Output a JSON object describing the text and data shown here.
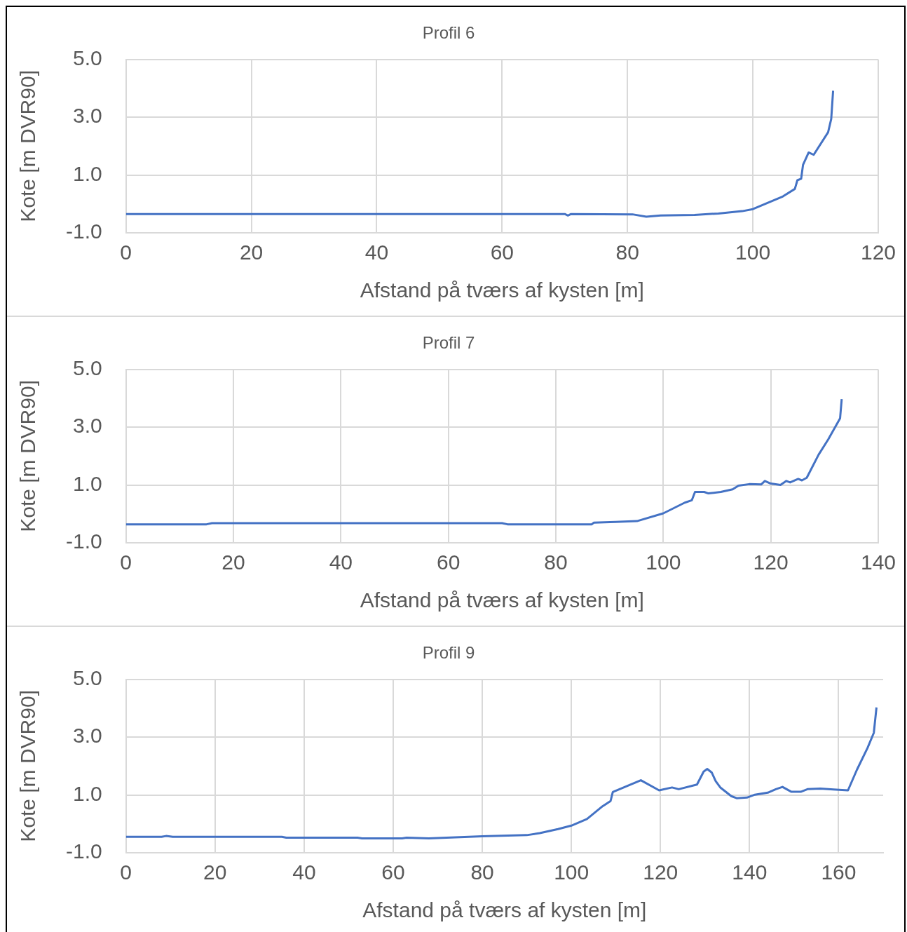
{
  "chart_data": [
    {
      "type": "line",
      "title": "Profil 6",
      "xlabel": "Afstand på tværs af kysten [m]",
      "ylabel": "Kote [m DVR90]",
      "xlim": [
        0,
        120
      ],
      "xticks": [
        0,
        20,
        40,
        60,
        80,
        100,
        120
      ],
      "ylim": [
        -1,
        5
      ],
      "yticks": [
        {
          "value": -1,
          "label": "-1.0"
        },
        {
          "value": 1,
          "label": "1.0"
        },
        {
          "value": 3,
          "label": "3.0"
        },
        {
          "value": 5,
          "label": "5.0"
        }
      ],
      "grid": true,
      "marker": "none",
      "series": [
        {
          "color": "#4472c4",
          "x": [
            0,
            70,
            70.5,
            71,
            80.8,
            83,
            85.3,
            90.7,
            94.5,
            98.3,
            100,
            104.8,
            106.7,
            107.1,
            107.7,
            108,
            108.9,
            109.7,
            112,
            112.5,
            112.8
          ],
          "values": [
            -0.35,
            -0.35,
            -0.4,
            -0.35,
            -0.36,
            -0.44,
            -0.4,
            -0.38,
            -0.33,
            -0.25,
            -0.18,
            0.26,
            0.52,
            0.82,
            0.87,
            1.35,
            1.78,
            1.7,
            2.48,
            2.94,
            3.92
          ]
        }
      ]
    },
    {
      "type": "line",
      "title": "Profil 7",
      "xlabel": "Afstand på tværs af kysten [m]",
      "ylabel": "Kote [m DVR90]",
      "xlim": [
        0,
        140
      ],
      "xticks": [
        0,
        20,
        40,
        60,
        80,
        100,
        120,
        140
      ],
      "ylim": [
        -1,
        5
      ],
      "yticks": [
        {
          "value": -1,
          "label": "-1.0"
        },
        {
          "value": 1,
          "label": "1.0"
        },
        {
          "value": 3,
          "label": "3.0"
        },
        {
          "value": 5,
          "label": "5.0"
        }
      ],
      "grid": true,
      "marker": "none",
      "series": [
        {
          "color": "#4472c4",
          "x": [
            0,
            15,
            16,
            70,
            71,
            86.7,
            87.1,
            91.1,
            95.1,
            100,
            104,
            105.3,
            105.9,
            107.6,
            108.4,
            110.7,
            112.9,
            114,
            116,
            118.2,
            118.9,
            120,
            121.8,
            122.9,
            123.6,
            125.1,
            125.8,
            126.7,
            128.9,
            130.7,
            132.9,
            133.2
          ],
          "values": [
            -0.36,
            -0.36,
            -0.32,
            -0.32,
            -0.36,
            -0.36,
            -0.3,
            -0.28,
            -0.25,
            0.02,
            0.39,
            0.47,
            0.76,
            0.76,
            0.71,
            0.76,
            0.85,
            0.98,
            1.03,
            1.02,
            1.14,
            1.05,
            1.0,
            1.14,
            1.09,
            1.21,
            1.16,
            1.25,
            2.05,
            2.58,
            3.31,
            3.97
          ]
        }
      ]
    },
    {
      "type": "line",
      "title": "Profil 9",
      "xlabel": "Afstand på tværs af kysten [m]",
      "ylabel": "Kote [m DVR90]",
      "xlim": [
        0,
        170
      ],
      "xticks": [
        0,
        20,
        40,
        60,
        80,
        100,
        120,
        140,
        160
      ],
      "ylim": [
        -1,
        5
      ],
      "yticks": [
        {
          "value": -1,
          "label": "-1.0"
        },
        {
          "value": 1,
          "label": "1.0"
        },
        {
          "value": 3,
          "label": "3.0"
        },
        {
          "value": 5,
          "label": "5.0"
        }
      ],
      "grid": true,
      "marker": "none",
      "series": [
        {
          "color": "#4472c4",
          "x": [
            0,
            8,
            9,
            10.5,
            35,
            36,
            52,
            53,
            62,
            63,
            68,
            72,
            80,
            90,
            92.9,
            97,
            100,
            103.5,
            107,
            108.8,
            109.3,
            112.4,
            115.6,
            119.7,
            122.6,
            124.1,
            128.2,
            129.7,
            130.5,
            131.5,
            132.4,
            133.5,
            135.9,
            137.1,
            139.4,
            141.2,
            144.1,
            145.9,
            147.4,
            149.4,
            151.5,
            153,
            155.9,
            158.8,
            162.1,
            164.1,
            166.5,
            167.9,
            168.5
          ],
          "values": [
            -0.45,
            -0.45,
            -0.42,
            -0.45,
            -0.45,
            -0.48,
            -0.48,
            -0.5,
            -0.5,
            -0.48,
            -0.5,
            -0.48,
            -0.43,
            -0.39,
            -0.32,
            -0.18,
            -0.06,
            0.17,
            0.61,
            0.79,
            1.1,
            1.3,
            1.51,
            1.16,
            1.26,
            1.2,
            1.36,
            1.81,
            1.9,
            1.78,
            1.48,
            1.25,
            0.96,
            0.89,
            0.91,
            1.01,
            1.08,
            1.2,
            1.28,
            1.11,
            1.11,
            1.2,
            1.22,
            1.19,
            1.16,
            1.87,
            2.63,
            3.15,
            4.03
          ]
        }
      ]
    }
  ]
}
